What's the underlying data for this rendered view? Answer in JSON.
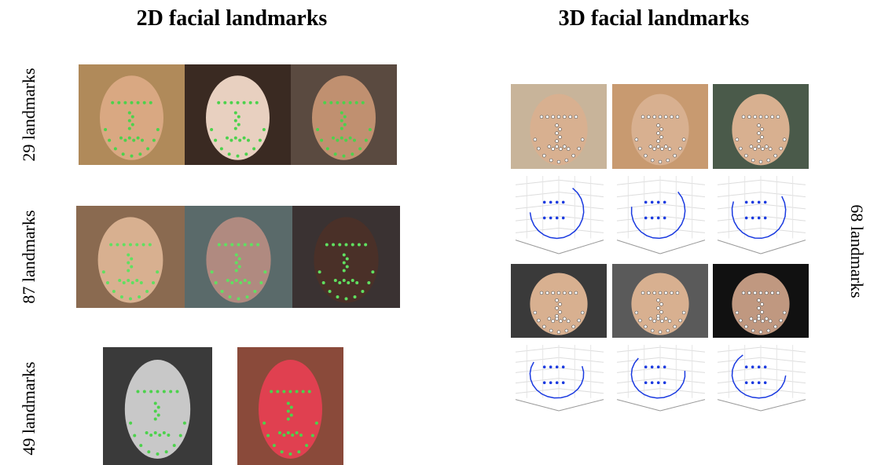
{
  "header": {
    "left_title": "2D facial landmarks",
    "right_title": "3D facial landmarks"
  },
  "rows_2d": [
    {
      "label": "29 landmarks"
    },
    {
      "label": "87 landmarks"
    },
    {
      "label": "49 landmarks"
    }
  ],
  "panel_3d": {
    "label": "68 landmarks"
  }
}
